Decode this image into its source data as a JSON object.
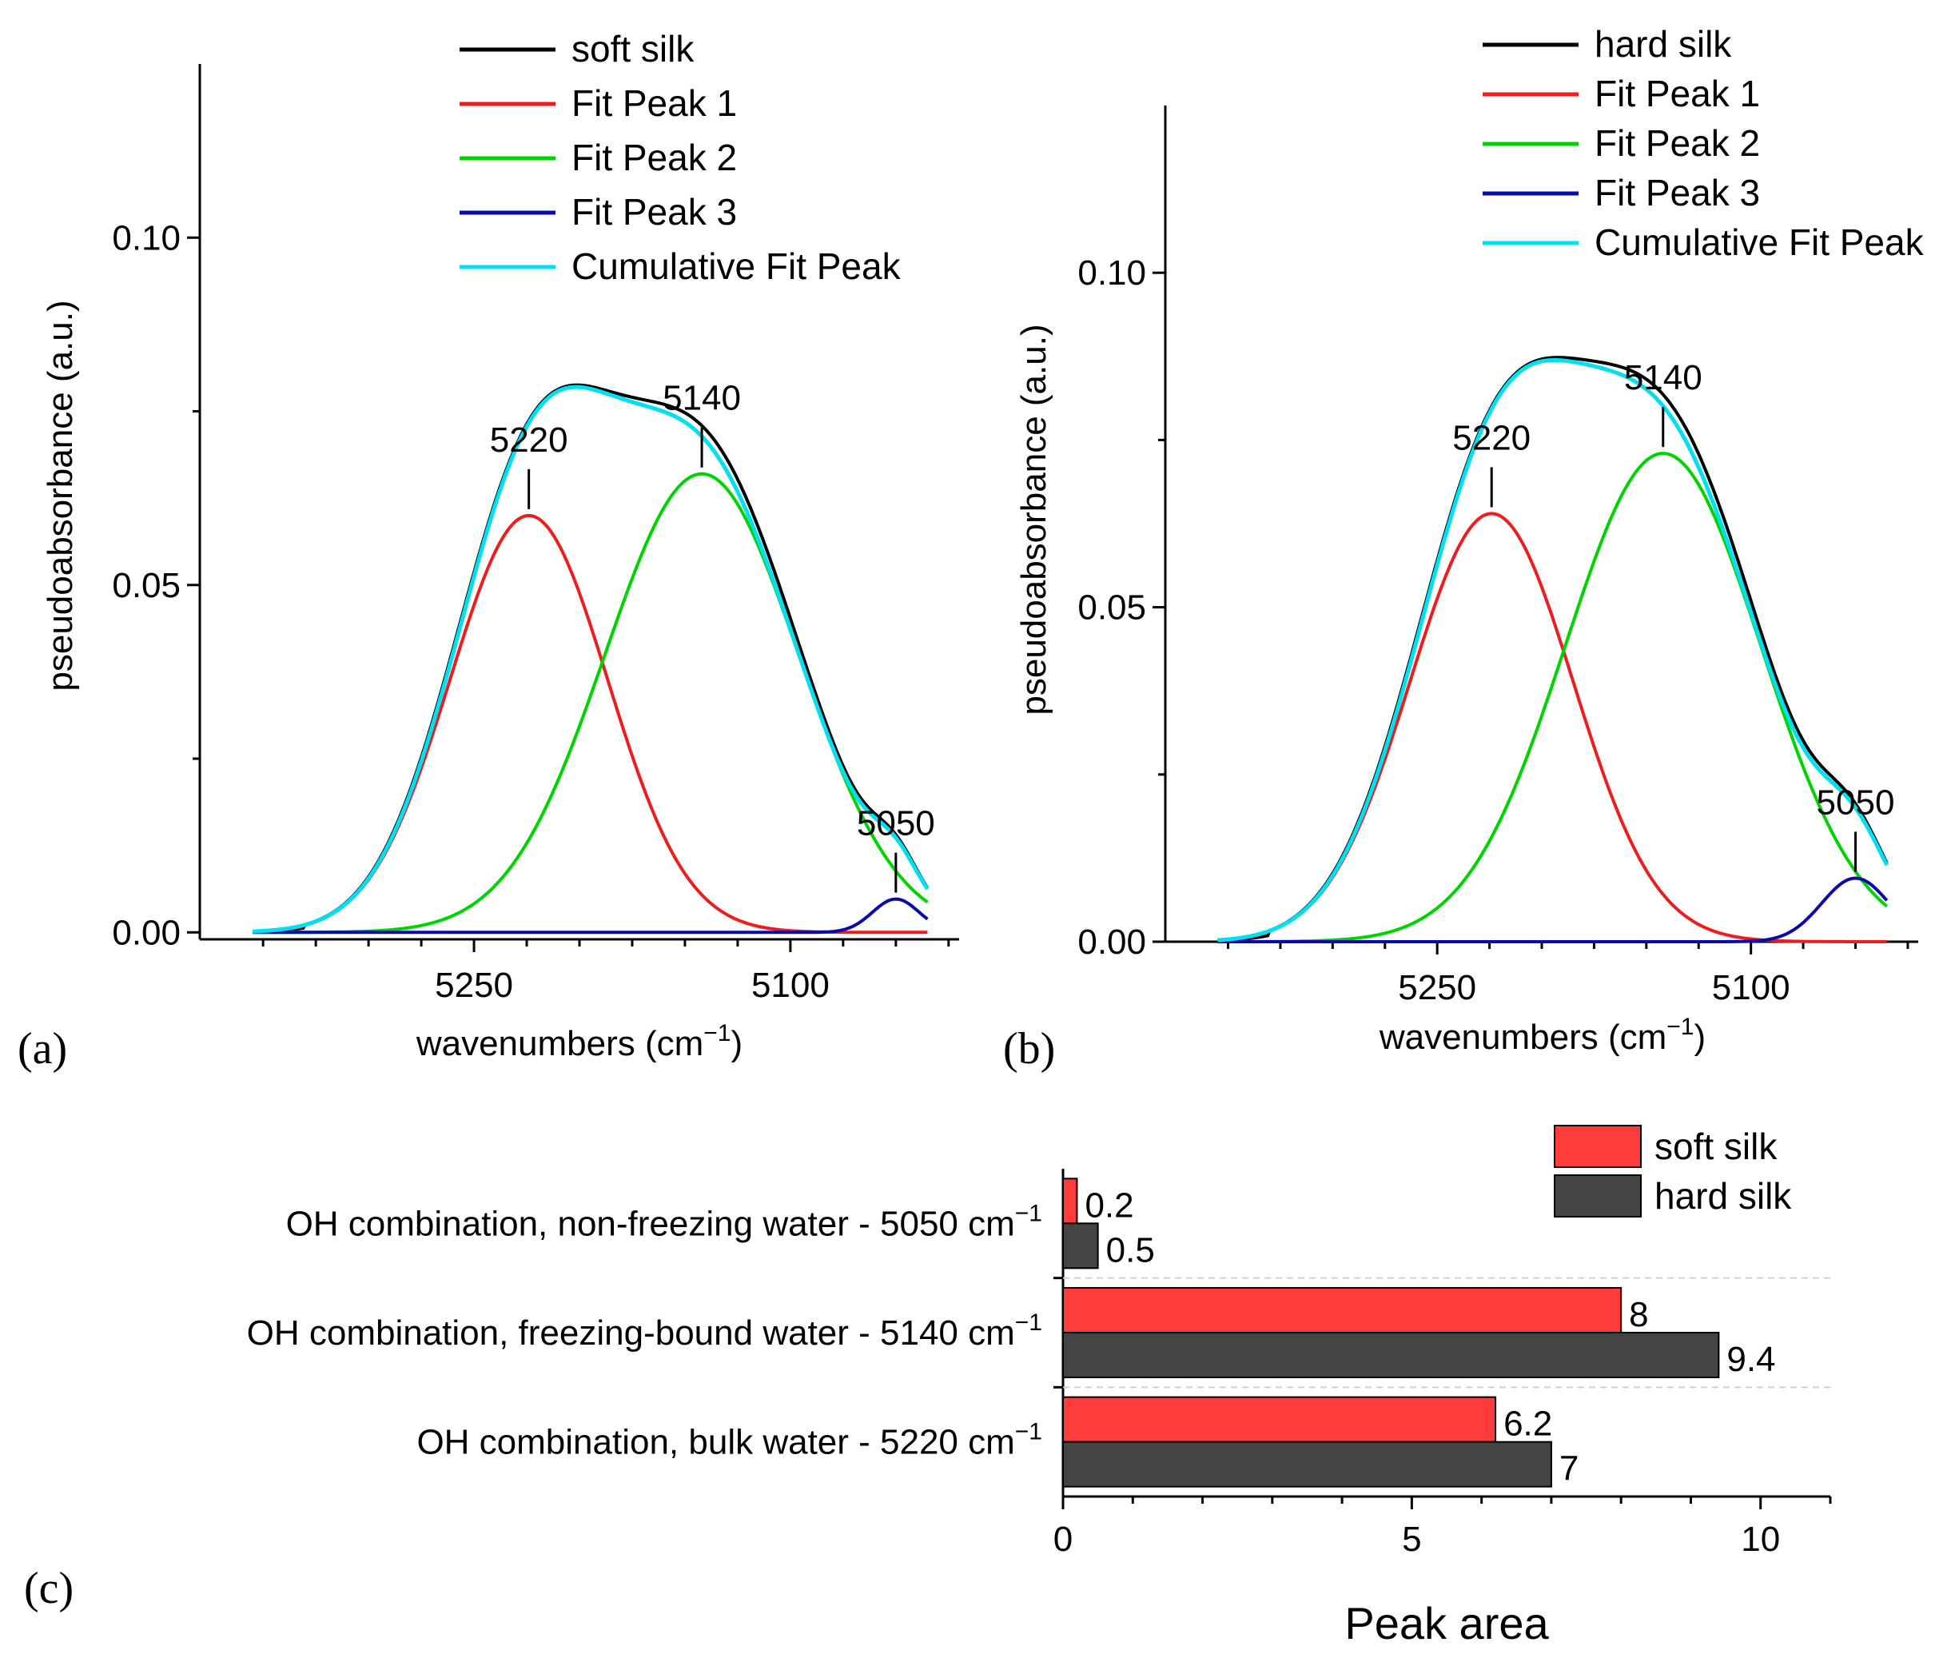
{
  "chart_data": [
    {
      "panel_label": "(a)",
      "type": "line",
      "xlabel": "wavenumbers (cm",
      "xlabel_sup": "−1",
      "xlabel_close": ")",
      "ylabel": "pseudoabsorbance (a.u.)",
      "xlim": [
        5380,
        5020
      ],
      "ylim": [
        -0.001,
        0.125
      ],
      "xticks": [
        {
          "v": 5250,
          "t": "5250"
        },
        {
          "v": 5100,
          "t": "5100"
        }
      ],
      "yticks": [
        {
          "v": 0.0,
          "t": "0.00"
        },
        {
          "v": 0.05,
          "t": "0.05"
        },
        {
          "v": 0.1,
          "t": "0.10"
        }
      ],
      "spectrum_range": [
        5355,
        5035
      ],
      "peaks": [
        {
          "name": "Fit Peak 1",
          "center": 5224,
          "amp": 0.06,
          "fwhm": 88
        },
        {
          "name": "Fit Peak 2",
          "center": 5142,
          "amp": 0.066,
          "fwhm": 108
        },
        {
          "name": "Fit Peak 3",
          "center": 5050,
          "amp": 0.0048,
          "fwhm": 26
        }
      ],
      "measured_offset": 0.0015,
      "annotations": [
        {
          "text": "5220",
          "x": 5224,
          "y": 0.06
        },
        {
          "text": "5140",
          "x": 5142,
          "y": 0.066
        },
        {
          "text": "5050",
          "x": 5050,
          "y": 0.0048
        }
      ],
      "legend": [
        "soft silk",
        "Fit Peak 1",
        "Fit Peak 2",
        "Fit Peak 3",
        "Cumulative Fit Peak"
      ]
    },
    {
      "panel_label": "(b)",
      "type": "line",
      "xlabel": "wavenumbers (cm",
      "xlabel_sup": "−1",
      "xlabel_close": ")",
      "ylabel": "pseudoabsorbance (a.u.)",
      "xlim": [
        5380,
        5020
      ],
      "ylim": [
        0.0,
        0.125
      ],
      "xticks": [
        {
          "v": 5250,
          "t": "5250"
        },
        {
          "v": 5100,
          "t": "5100"
        }
      ],
      "yticks": [
        {
          "v": 0.0,
          "t": "0.00"
        },
        {
          "v": 0.05,
          "t": "0.05"
        },
        {
          "v": 0.1,
          "t": "0.10"
        }
      ],
      "spectrum_range": [
        5355,
        5035
      ],
      "peaks": [
        {
          "name": "Fit Peak 1",
          "center": 5224,
          "amp": 0.064,
          "fwhm": 92
        },
        {
          "name": "Fit Peak 2",
          "center": 5142,
          "amp": 0.073,
          "fwhm": 110
        },
        {
          "name": "Fit Peak 3",
          "center": 5050,
          "amp": 0.0095,
          "fwhm": 38
        }
      ],
      "measured_offset": 0.0015,
      "annotations": [
        {
          "text": "5220",
          "x": 5224,
          "y": 0.064
        },
        {
          "text": "5140",
          "x": 5142,
          "y": 0.073
        },
        {
          "text": "5050",
          "x": 5050,
          "y": 0.0095
        }
      ],
      "legend": [
        "hard silk",
        "Fit Peak 1",
        "Fit Peak 2",
        "Fit Peak 3",
        "Cumulative Fit Peak"
      ]
    },
    {
      "panel_label": "(c)",
      "type": "bar",
      "orientation": "horizontal",
      "xlabel": "Peak area",
      "xlim": [
        0,
        11
      ],
      "xticks": [
        {
          "v": 0,
          "t": "0"
        },
        {
          "v": 5,
          "t": "5"
        },
        {
          "v": 10,
          "t": "10"
        }
      ],
      "categories": [
        "OH combination, non-freezing water - 5050 cm",
        "OH combination, freezing-bound water - 5140 cm",
        "OH combination, bulk water - 5220 cm"
      ],
      "category_sup": "−1",
      "series": [
        {
          "name": "soft silk",
          "values": [
            0.2,
            8,
            6.2
          ],
          "labels": [
            "0.2",
            "8",
            "6.2"
          ]
        },
        {
          "name": "hard silk",
          "values": [
            0.5,
            9.4,
            7
          ],
          "labels": [
            "0.5",
            "9.4",
            "7"
          ]
        }
      ]
    }
  ],
  "colors": {
    "measured": "#000000",
    "peak1": "#ee1c1c",
    "peak2": "#00d400",
    "peak3": "#0a0aa8",
    "cumulative": "#00e0f0",
    "soft_bar": "#ff3b3b",
    "hard_bar": "#444444",
    "grid": "#d0d0d0"
  }
}
